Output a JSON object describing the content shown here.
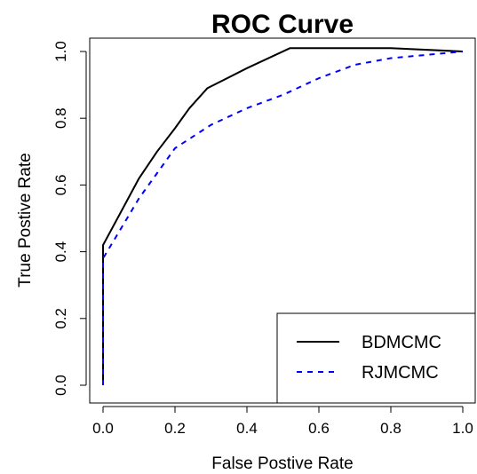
{
  "chart_data": {
    "type": "line",
    "title": "ROC Curve",
    "xlabel": "False Postive Rate",
    "ylabel": "True Postive Rate",
    "xlim": [
      0,
      1
    ],
    "ylim": [
      0,
      1
    ],
    "x_ticks": [
      "0.0",
      "0.2",
      "0.4",
      "0.6",
      "0.8",
      "1.0"
    ],
    "y_ticks": [
      "0.0",
      "0.2",
      "0.4",
      "0.6",
      "0.8",
      "1.0"
    ],
    "legend_position": "bottom-right",
    "grid": false,
    "series": [
      {
        "name": "BDMCMC",
        "color": "#000000",
        "line_style": "solid",
        "x": [
          0,
          0,
          0.05,
          0.1,
          0.15,
          0.2,
          0.24,
          0.29,
          0.4,
          0.52,
          0.8,
          1.0
        ],
        "y": [
          0,
          0.42,
          0.52,
          0.62,
          0.7,
          0.77,
          0.83,
          0.89,
          0.95,
          1.01,
          1.01,
          1.0
        ]
      },
      {
        "name": "RJMCMC",
        "color": "#0000ff",
        "line_style": "dashed",
        "x": [
          0,
          0,
          0.05,
          0.1,
          0.2,
          0.3,
          0.4,
          0.5,
          0.6,
          0.7,
          0.8,
          0.9,
          1.0
        ],
        "y": [
          0,
          0.38,
          0.47,
          0.56,
          0.71,
          0.78,
          0.83,
          0.87,
          0.92,
          0.96,
          0.98,
          0.99,
          1.0
        ]
      }
    ]
  }
}
